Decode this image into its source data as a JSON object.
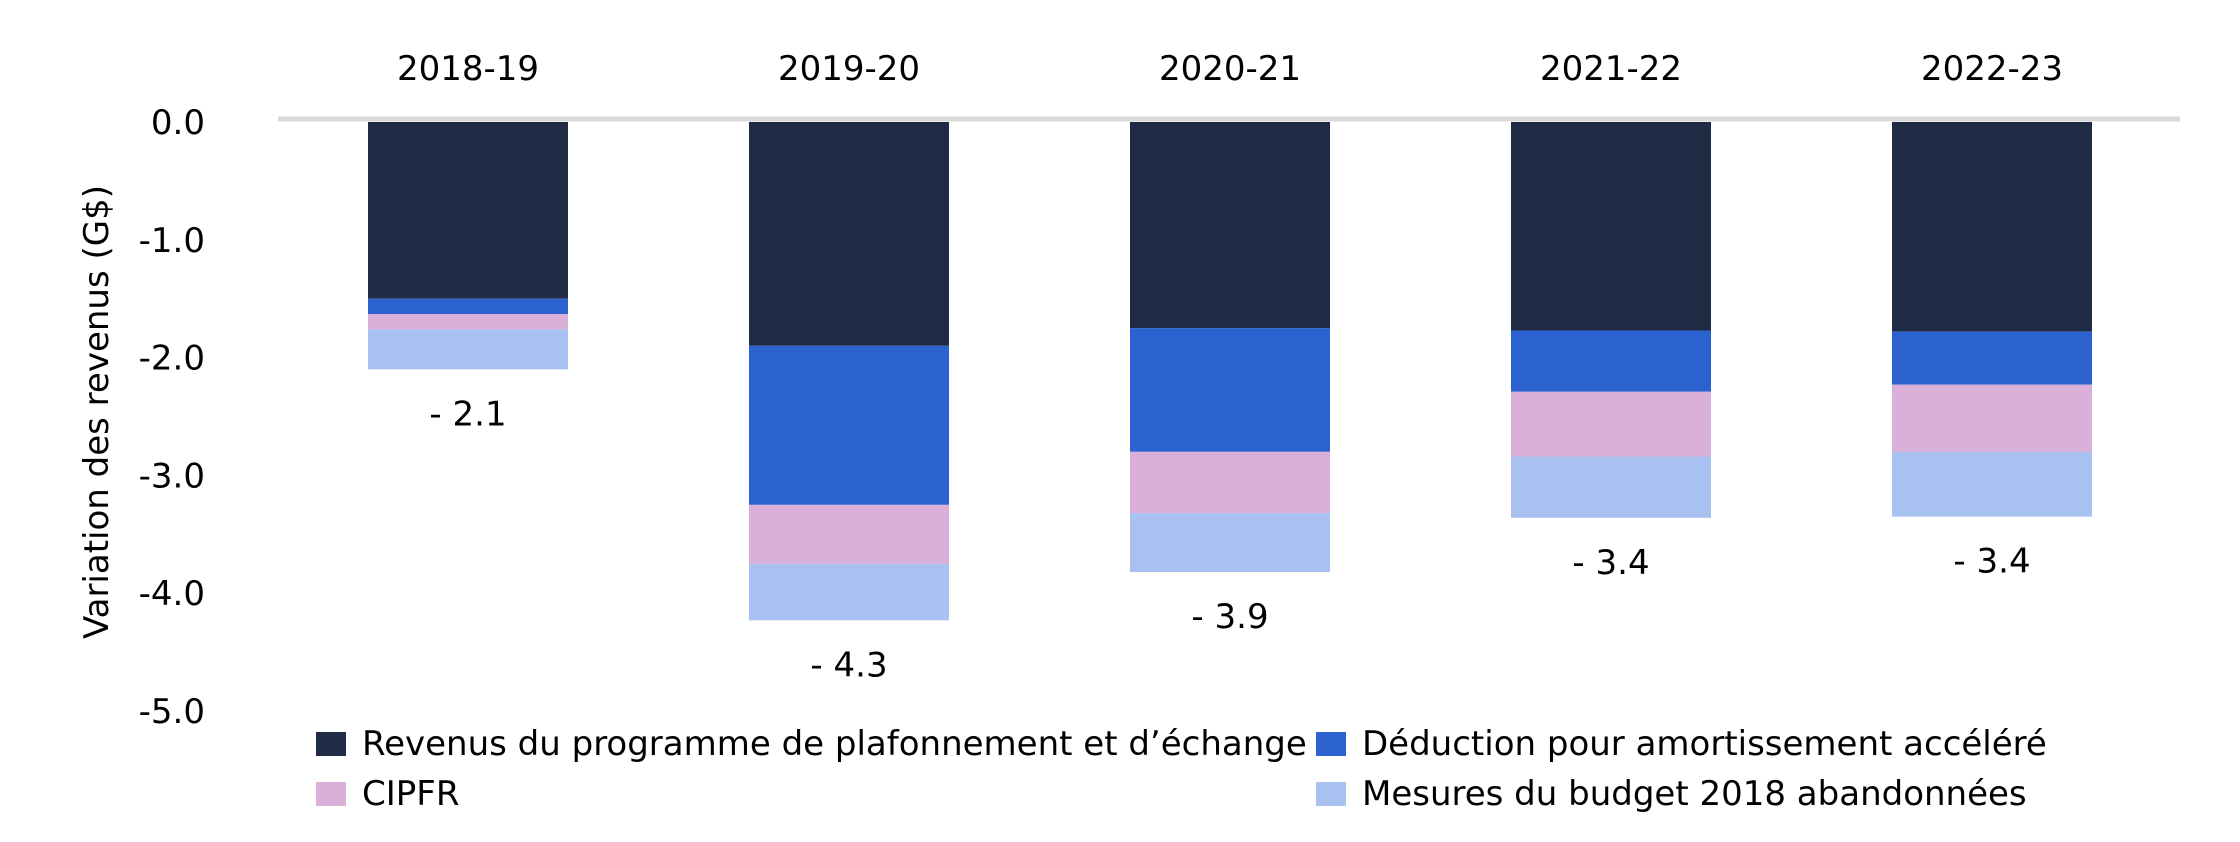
{
  "chart_data": {
    "type": "bar",
    "stacked": true,
    "title": "",
    "xlabel": "",
    "ylabel": "Variation des revenus (G$)",
    "ylim": [
      -5.0,
      0.0
    ],
    "yticks": [
      0.0,
      -1.0,
      -2.0,
      -3.0,
      -4.0,
      -5.0
    ],
    "ytick_labels": [
      "0.0",
      "-1.0",
      "-2.0",
      "-3.0",
      "-4.0",
      "-5.0"
    ],
    "category_axis_position": "top",
    "grid": false,
    "legend_position": "bottom",
    "categories": [
      "2018-19",
      "2019-20",
      "2020-21",
      "2021-22",
      "2022-23"
    ],
    "series": [
      {
        "name": "Revenus du programme de plafonnement et d’échange",
        "color": "#1f2a44",
        "values": [
          -1.5,
          -1.9,
          -1.75,
          -1.77,
          -1.78
        ]
      },
      {
        "name": "Déduction pour amortissement accéléré",
        "color": "#2b62d0",
        "values": [
          -0.13,
          -1.35,
          -1.05,
          -0.52,
          -0.45
        ]
      },
      {
        "name": "CIPFR",
        "color": "#dbb0d8",
        "values": [
          -0.13,
          -0.5,
          -0.52,
          -0.55,
          -0.57
        ]
      },
      {
        "name": "Mesures du budget 2018 abandonnées",
        "color": "#a8c1f1",
        "values": [
          -0.34,
          -0.48,
          -0.5,
          -0.52,
          -0.55
        ]
      }
    ],
    "totals": [
      -2.1,
      -4.3,
      -3.9,
      -3.4,
      -3.4
    ],
    "total_labels": [
      "- 2.1",
      "- 4.3",
      "- 3.9",
      "- 3.4",
      "- 3.4"
    ]
  },
  "legend": {
    "items": [
      {
        "label": "Revenus du programme de plafonnement et d’échange",
        "color": "#1f2a44"
      },
      {
        "label": "Déduction pour amortissement accéléré",
        "color": "#2b62d0"
      },
      {
        "label": "CIPFR",
        "color": "#dbb0d8"
      },
      {
        "label": "Mesures du budget 2018 abandonnées",
        "color": "#a8c1f1"
      }
    ]
  }
}
